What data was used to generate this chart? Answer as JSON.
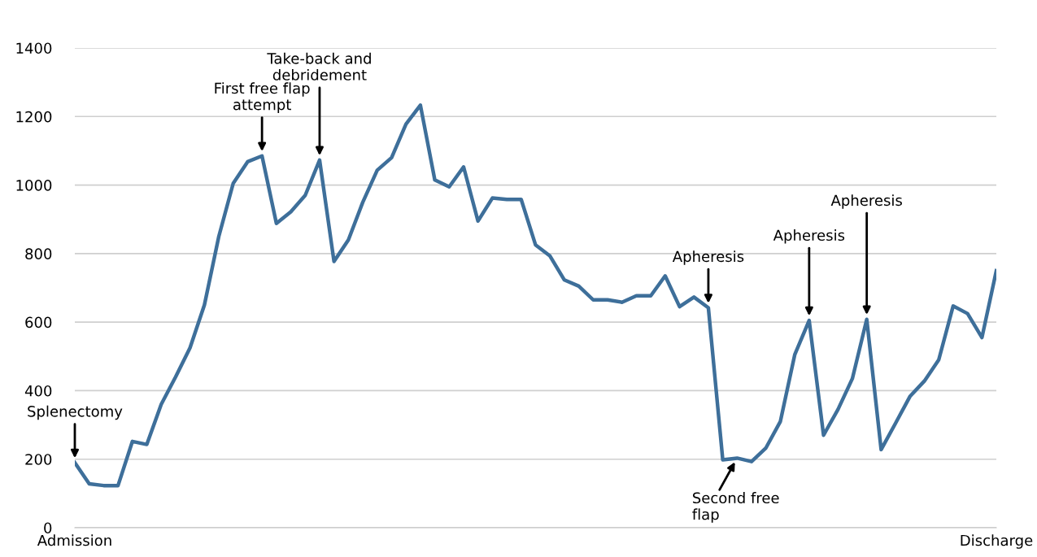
{
  "chart_data": {
    "type": "line",
    "categories": [
      "Admission",
      null,
      null,
      null,
      null,
      null,
      null,
      null,
      null,
      null,
      null,
      null,
      null,
      null,
      null,
      null,
      null,
      null,
      null,
      null,
      null,
      null,
      null,
      null,
      null,
      null,
      null,
      null,
      null,
      null,
      null,
      null,
      null,
      null,
      null,
      null,
      null,
      null,
      null,
      null,
      null,
      null,
      null,
      null,
      null,
      null,
      null,
      null,
      null,
      null,
      null,
      null,
      null,
      null,
      null,
      null,
      null,
      null,
      null,
      null,
      null,
      null,
      null,
      null,
      "Discharge"
    ],
    "series": [
      {
        "color": "#3e6f9a",
        "values": [
          190,
          128,
          123,
          123,
          252,
          243,
          360,
          440,
          525,
          650,
          850,
          1005,
          1068,
          1085,
          888,
          922,
          970,
          1073,
          777,
          840,
          950,
          1043,
          1080,
          1178,
          1233,
          1015,
          995,
          1053,
          895,
          962,
          958,
          958,
          825,
          793,
          723,
          705,
          665,
          665,
          658,
          677,
          677,
          735,
          645,
          673,
          642,
          198,
          203,
          193,
          233,
          310,
          505,
          605,
          270,
          345,
          435,
          608,
          228,
          305,
          383,
          428,
          490,
          647,
          625,
          555,
          750
        ]
      }
    ],
    "ylim": [
      0,
      1400
    ],
    "yticks": [
      0,
      200,
      400,
      600,
      800,
      1000,
      1200,
      1400
    ],
    "grid": "y",
    "legend": false,
    "marker": "none",
    "line_style": "solid",
    "annotations": [
      {
        "text": "Splenectomy",
        "x": "Admission",
        "y": 190
      },
      {
        "text": "First free flap\nattempt",
        "y": 1085
      },
      {
        "text": "Take-back and\ndebridement",
        "y": 1073
      },
      {
        "text": "Apheresis",
        "y": 642
      },
      {
        "text": "Apheresis",
        "y": 605
      },
      {
        "text": "Apheresis",
        "y": 608
      },
      {
        "text": "Second free\nflap",
        "y": 203
      }
    ]
  }
}
